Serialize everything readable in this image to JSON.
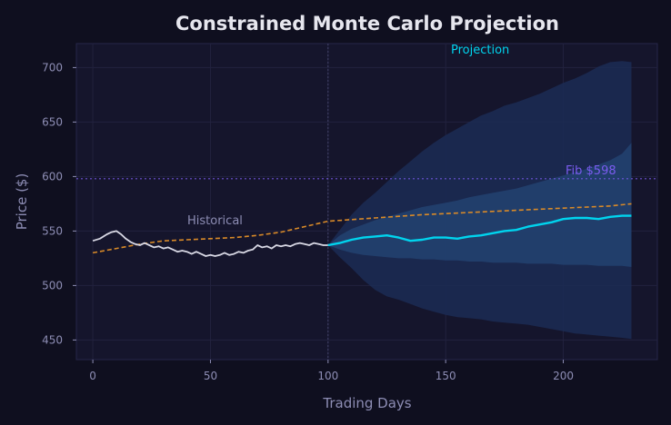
{
  "chart_data": {
    "type": "line",
    "title": "Constrained Monte Carlo Projection",
    "xlabel": "Trading Days",
    "ylabel": "Price ($)",
    "xlim": [
      -7,
      240
    ],
    "ylim": [
      432,
      722
    ],
    "xticks": [
      0,
      50,
      100,
      150,
      200
    ],
    "yticks": [
      450,
      500,
      550,
      600,
      650,
      700
    ],
    "grid": true,
    "colors": {
      "background": "#0f0f1f",
      "plot_bg": "#15152c",
      "historical": "#d8d8e4",
      "projection": "#00d4ee",
      "trend": "#d98a28",
      "fib": "#7b5cf0",
      "band_outer": "#1b2c55",
      "band_inner": "#22406f",
      "divider": "#44446a"
    },
    "historical": {
      "x": [
        0,
        3,
        6,
        8,
        10,
        12,
        14,
        16,
        18,
        20,
        22,
        24,
        26,
        28,
        30,
        32,
        34,
        36,
        38,
        40,
        42,
        44,
        46,
        48,
        50,
        52,
        54,
        56,
        58,
        60,
        62,
        64,
        66,
        68,
        70,
        72,
        74,
        76,
        78,
        80,
        82,
        84,
        86,
        88,
        90,
        92,
        94,
        96,
        98,
        100
      ],
      "y": [
        541,
        543,
        547,
        549,
        550,
        547,
        543,
        540,
        538,
        537,
        539,
        537,
        535,
        536,
        534,
        535,
        533,
        531,
        532,
        531,
        529,
        531,
        529,
        527,
        528,
        527,
        528,
        530,
        528,
        529,
        531,
        530,
        532,
        533,
        537,
        535,
        536,
        534,
        537,
        536,
        537,
        536,
        538,
        539,
        538,
        537,
        539,
        538,
        537,
        537
      ]
    },
    "projection": {
      "x": [
        100,
        105,
        110,
        115,
        120,
        125,
        130,
        135,
        140,
        145,
        150,
        155,
        160,
        165,
        170,
        175,
        180,
        185,
        190,
        195,
        200,
        205,
        210,
        215,
        220,
        225,
        229
      ],
      "median": [
        537,
        539,
        542,
        544,
        545,
        546,
        544,
        541,
        542,
        544,
        544,
        543,
        545,
        546,
        548,
        550,
        551,
        554,
        556,
        558,
        561,
        562,
        562,
        561,
        563,
        564,
        564
      ],
      "p25": [
        537,
        533,
        530,
        528,
        527,
        526,
        525,
        525,
        524,
        524,
        523,
        523,
        522,
        522,
        521,
        521,
        521,
        520,
        520,
        520,
        519,
        519,
        519,
        518,
        518,
        518,
        517
      ],
      "p75": [
        537,
        546,
        552,
        556,
        560,
        563,
        566,
        569,
        572,
        574,
        576,
        578,
        581,
        583,
        585,
        587,
        589,
        592,
        595,
        598,
        601,
        604,
        607,
        611,
        615,
        621,
        631
      ],
      "p5": [
        537,
        526,
        516,
        505,
        496,
        490,
        487,
        483,
        479,
        476,
        473,
        471,
        470,
        469,
        467,
        466,
        465,
        464,
        462,
        460,
        458,
        456,
        455,
        454,
        453,
        452,
        451
      ],
      "p95": [
        537,
        551,
        565,
        576,
        585,
        595,
        605,
        614,
        623,
        631,
        638,
        644,
        650,
        656,
        660,
        665,
        668,
        672,
        676,
        681,
        686,
        690,
        695,
        701,
        705,
        706,
        705
      ]
    },
    "trend": {
      "x": [
        0,
        10,
        20,
        30,
        40,
        50,
        60,
        70,
        80,
        90,
        100,
        120,
        140,
        160,
        180,
        200,
        220,
        229
      ],
      "y": [
        530,
        534,
        538,
        541,
        542,
        543,
        544,
        546,
        549,
        554,
        559,
        562,
        565,
        567,
        569,
        571,
        573,
        575
      ]
    },
    "fib_level": 598,
    "divider_x": 100,
    "annotations": {
      "historical": "Historical",
      "projection": "Projection",
      "fib": "Fib $598"
    }
  }
}
